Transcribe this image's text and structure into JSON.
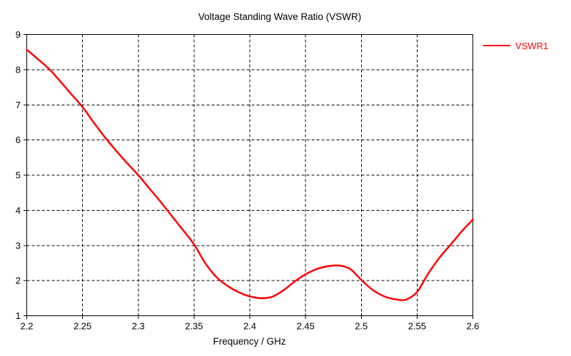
{
  "window": {
    "background": "#ffffff"
  },
  "chart_data": {
    "type": "line",
    "title": "Voltage Standing Wave Ratio (VSWR)",
    "xlabel": "Frequency / GHz",
    "ylabel": "",
    "xlim": [
      2.2,
      2.6
    ],
    "ylim": [
      1,
      9
    ],
    "xticks": {
      "values": [
        2.2,
        2.25,
        2.3,
        2.35,
        2.4,
        2.45,
        2.5,
        2.55,
        2.6
      ],
      "labels": [
        "2.2",
        "2.25",
        "2.3",
        "2.35",
        "2.4",
        "2.45",
        "2.5",
        "2.55",
        "2.6"
      ]
    },
    "yticks": {
      "values": [
        1,
        2,
        3,
        4,
        5,
        6,
        7,
        8,
        9
      ],
      "labels": [
        "1",
        "2",
        "3",
        "4",
        "5",
        "6",
        "7",
        "8",
        "9"
      ]
    },
    "grid": {
      "enabled": true,
      "style": "dashed",
      "color": "#000000"
    },
    "axis_color": "#000000",
    "text_color": "#000000",
    "legend": {
      "position": "top-right",
      "entries": [
        {
          "label": "VSWR1",
          "color": "#fe0000"
        }
      ]
    },
    "series": [
      {
        "name": "VSWR1",
        "color": "#fe0000",
        "x": [
          2.2,
          2.21,
          2.22,
          2.23,
          2.24,
          2.25,
          2.26,
          2.27,
          2.28,
          2.29,
          2.3,
          2.31,
          2.32,
          2.33,
          2.34,
          2.35,
          2.36,
          2.37,
          2.38,
          2.39,
          2.4,
          2.41,
          2.42,
          2.43,
          2.44,
          2.45,
          2.46,
          2.47,
          2.48,
          2.49,
          2.5,
          2.51,
          2.52,
          2.53,
          2.54,
          2.55,
          2.56,
          2.57,
          2.58,
          2.59,
          2.6
        ],
        "y": [
          8.57,
          8.3,
          8.02,
          7.67,
          7.3,
          6.94,
          6.5,
          6.08,
          5.7,
          5.34,
          5.0,
          4.62,
          4.24,
          3.84,
          3.44,
          3.03,
          2.5,
          2.1,
          1.85,
          1.67,
          1.55,
          1.5,
          1.54,
          1.72,
          1.97,
          2.18,
          2.33,
          2.41,
          2.43,
          2.33,
          2.02,
          1.74,
          1.56,
          1.47,
          1.46,
          1.68,
          2.2,
          2.65,
          3.02,
          3.4,
          3.74
        ]
      }
    ]
  }
}
